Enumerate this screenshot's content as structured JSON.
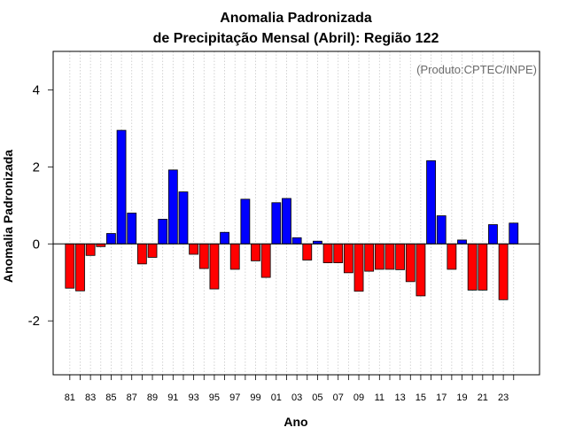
{
  "chart_data": {
    "type": "bar",
    "title": [
      "Anomalia Padronizada",
      "de Precipitação Mensal (Abril): Região 122"
    ],
    "credit": "(Produto:CPTEC/INPE)",
    "xlabel": "Ano",
    "ylabel": "Anomalia Padronizada",
    "ylim": [
      -3.4,
      5.0
    ],
    "yticks": [
      -2,
      0,
      2,
      4
    ],
    "grid": "vertical dotted",
    "colors": {
      "positive": "#0000ff",
      "negative": "#ff0000",
      "edge": "#000000",
      "grid": "#c8c8c8"
    },
    "categories": [
      "81",
      "82",
      "83",
      "84",
      "85",
      "86",
      "87",
      "88",
      "89",
      "90",
      "91",
      "92",
      "93",
      "94",
      "95",
      "96",
      "97",
      "98",
      "99",
      "00",
      "01",
      "02",
      "03",
      "04",
      "05",
      "06",
      "07",
      "08",
      "09",
      "10",
      "11",
      "12",
      "13",
      "14",
      "15",
      "16",
      "17",
      "18",
      "19",
      "20",
      "21",
      "22",
      "23",
      "24"
    ],
    "category_labels_shown": [
      "81",
      "83",
      "85",
      "87",
      "89",
      "91",
      "93",
      "95",
      "97",
      "99",
      "01",
      "03",
      "05",
      "07",
      "09",
      "11",
      "13",
      "15",
      "17",
      "19",
      "21",
      "23"
    ],
    "values": [
      -1.15,
      -1.22,
      -0.3,
      -0.07,
      0.27,
      2.95,
      0.8,
      -0.52,
      -0.35,
      0.64,
      1.92,
      1.35,
      -0.27,
      -0.64,
      -1.17,
      0.3,
      -0.66,
      1.16,
      -0.44,
      -0.87,
      1.07,
      1.18,
      0.16,
      -0.42,
      0.07,
      -0.49,
      -0.49,
      -0.75,
      -1.23,
      -0.71,
      -0.66,
      -0.66,
      -0.67,
      -0.98,
      -1.35,
      2.16,
      0.73,
      -0.66,
      0.1,
      -1.2,
      -1.2,
      0.5,
      -1.45,
      0.54
    ]
  }
}
